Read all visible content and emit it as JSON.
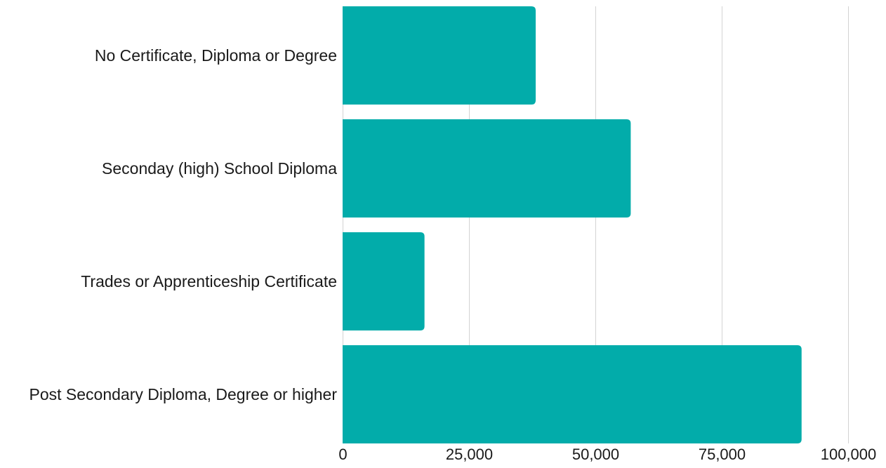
{
  "chart_data": {
    "type": "bar",
    "orientation": "horizontal",
    "title": "",
    "xlabel": "",
    "ylabel": "",
    "categories": [
      "No Certificate, Diploma or Degree",
      "Seconday (high) School Diploma",
      "Trades or Apprenticeship Certificate",
      "Post Secondary Diploma, Degree or higher"
    ],
    "values": [
      38200,
      57000,
      16200,
      90800
    ],
    "xlim": [
      0,
      100000
    ],
    "ticks": [
      0,
      25000,
      50000,
      75000,
      100000
    ],
    "tick_labels": [
      "0",
      "25,000",
      "50,000",
      "75,000",
      "100,000"
    ],
    "grid": true,
    "legend": "none",
    "colors": {
      "bar": "#02ACAA",
      "grid": "#d3d3d3"
    }
  }
}
